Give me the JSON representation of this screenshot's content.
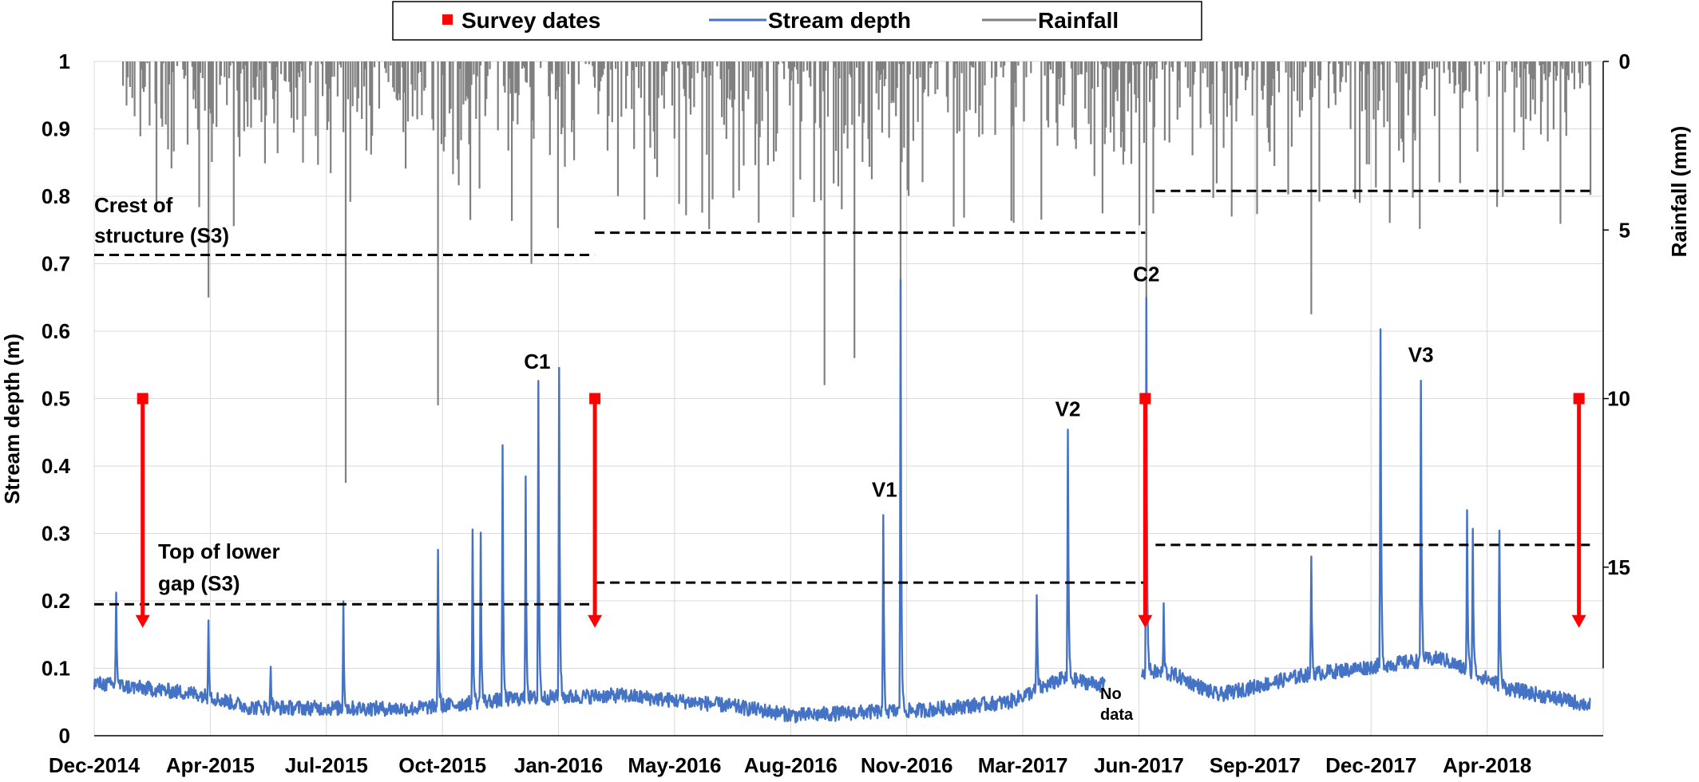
{
  "chart_data": {
    "type": "line",
    "legend": {
      "position": "top-center",
      "entries": [
        {
          "label": "Survey dates",
          "color": "#ff0000",
          "marker": "square"
        },
        {
          "label": "Stream depth",
          "color": "#4472c4",
          "marker": "line"
        },
        {
          "label": "Rainfall",
          "color": "#808080",
          "marker": "line"
        }
      ]
    },
    "x_axis": {
      "tick_labels": [
        "Dec-2014",
        "Apr-2015",
        "Jul-2015",
        "Oct-2015",
        "Jan-2016",
        "May-2016",
        "Aug-2016",
        "Nov-2016",
        "Mar-2017",
        "Jun-2017",
        "Sep-2017",
        "Dec-2017",
        "Apr-2018"
      ],
      "range": [
        "2014-12-01",
        "2018-07-01"
      ],
      "grid": true
    },
    "y_axis_left": {
      "label": "Stream depth (m)",
      "range": [
        0,
        1
      ],
      "tick_labels": [
        "0",
        "0.1",
        "0.2",
        "0.3",
        "0.4",
        "0.5",
        "0.6",
        "0.7",
        "0.8",
        "0.9",
        "1"
      ],
      "grid": true
    },
    "y_axis_right": {
      "label": "Rainfall (mm)",
      "range": [
        0,
        20
      ],
      "inverted": true,
      "tick_labels": [
        "0",
        "5",
        "10",
        "15"
      ]
    },
    "survey_dates": [
      {
        "date": "2015-01-12",
        "from": 0.5,
        "to": 0.16
      },
      {
        "date": "2016-02-08",
        "from": 0.5,
        "to": 0.16
      },
      {
        "date": "2017-05-30",
        "from": 0.5,
        "to": 0.16
      },
      {
        "date": "2018-06-10",
        "from": 0.5,
        "to": 0.16
      }
    ],
    "threshold_lines": [
      {
        "label": "Crest of structure (S3)",
        "segments": [
          {
            "start": "2014-12-01",
            "end": "2016-02-08",
            "value": 0.713
          },
          {
            "start": "2016-02-08",
            "end": "2017-05-30",
            "value": 0.746
          },
          {
            "start": "2017-06-08",
            "end": "2018-06-20",
            "value": 0.808
          }
        ]
      },
      {
        "label": "Top of lower gap (S3)",
        "segments": [
          {
            "start": "2014-12-01",
            "end": "2016-02-08",
            "value": 0.195
          },
          {
            "start": "2016-02-08",
            "end": "2017-05-30",
            "value": 0.227
          },
          {
            "start": "2017-06-08",
            "end": "2018-06-20",
            "value": 0.283
          }
        ]
      }
    ],
    "event_labels": [
      {
        "label": "C1",
        "date": "2015-12-20",
        "value": 0.53
      },
      {
        "label": "V1",
        "date": "2016-10-16",
        "value": 0.34
      },
      {
        "label": "V2",
        "date": "2017-03-24",
        "value": 0.46
      },
      {
        "label": "C2",
        "date": "2017-05-31",
        "value": 0.66
      },
      {
        "label": "V3",
        "date": "2018-01-24",
        "value": 0.54
      }
    ],
    "gap_annotation": {
      "lines": [
        "No",
        "data"
      ],
      "start": "2017-04-25",
      "end": "2017-05-27"
    },
    "stream_depth_peaks": [
      {
        "date": "2014-12-20",
        "value": 0.215
      },
      {
        "date": "2015-03-10",
        "value": 0.18
      },
      {
        "date": "2015-05-03",
        "value": 0.105
      },
      {
        "date": "2015-07-05",
        "value": 0.2
      },
      {
        "date": "2015-09-25",
        "value": 0.28
      },
      {
        "date": "2015-10-25",
        "value": 0.3
      },
      {
        "date": "2015-11-01",
        "value": 0.3
      },
      {
        "date": "2015-11-20",
        "value": 0.42
      },
      {
        "date": "2015-12-10",
        "value": 0.39
      },
      {
        "date": "2015-12-21",
        "value": 0.525
      },
      {
        "date": "2016-01-08",
        "value": 0.555
      },
      {
        "date": "2016-10-15",
        "value": 0.33
      },
      {
        "date": "2016-10-30",
        "value": 0.668
      },
      {
        "date": "2017-02-25",
        "value": 0.21
      },
      {
        "date": "2017-03-24",
        "value": 0.455
      },
      {
        "date": "2017-05-31",
        "value": 0.655
      },
      {
        "date": "2017-06-15",
        "value": 0.19
      },
      {
        "date": "2017-10-21",
        "value": 0.27
      },
      {
        "date": "2017-12-20",
        "value": 0.605
      },
      {
        "date": "2018-01-24",
        "value": 0.53
      },
      {
        "date": "2018-03-05",
        "value": 0.33
      },
      {
        "date": "2018-03-10",
        "value": 0.315
      },
      {
        "date": "2018-04-02",
        "value": 0.315
      }
    ],
    "rainfall_peaks_mm": [
      {
        "date": "2015-03-10",
        "value": 7.0
      },
      {
        "date": "2015-07-07",
        "value": 12.5
      },
      {
        "date": "2015-09-25",
        "value": 10.2
      },
      {
        "date": "2015-12-15",
        "value": 6.0
      },
      {
        "date": "2016-08-25",
        "value": 9.6
      },
      {
        "date": "2016-09-20",
        "value": 8.8
      },
      {
        "date": "2016-10-30",
        "value": 7.5
      },
      {
        "date": "2017-05-31",
        "value": 9.3
      },
      {
        "date": "2017-10-21",
        "value": 7.5
      }
    ]
  }
}
